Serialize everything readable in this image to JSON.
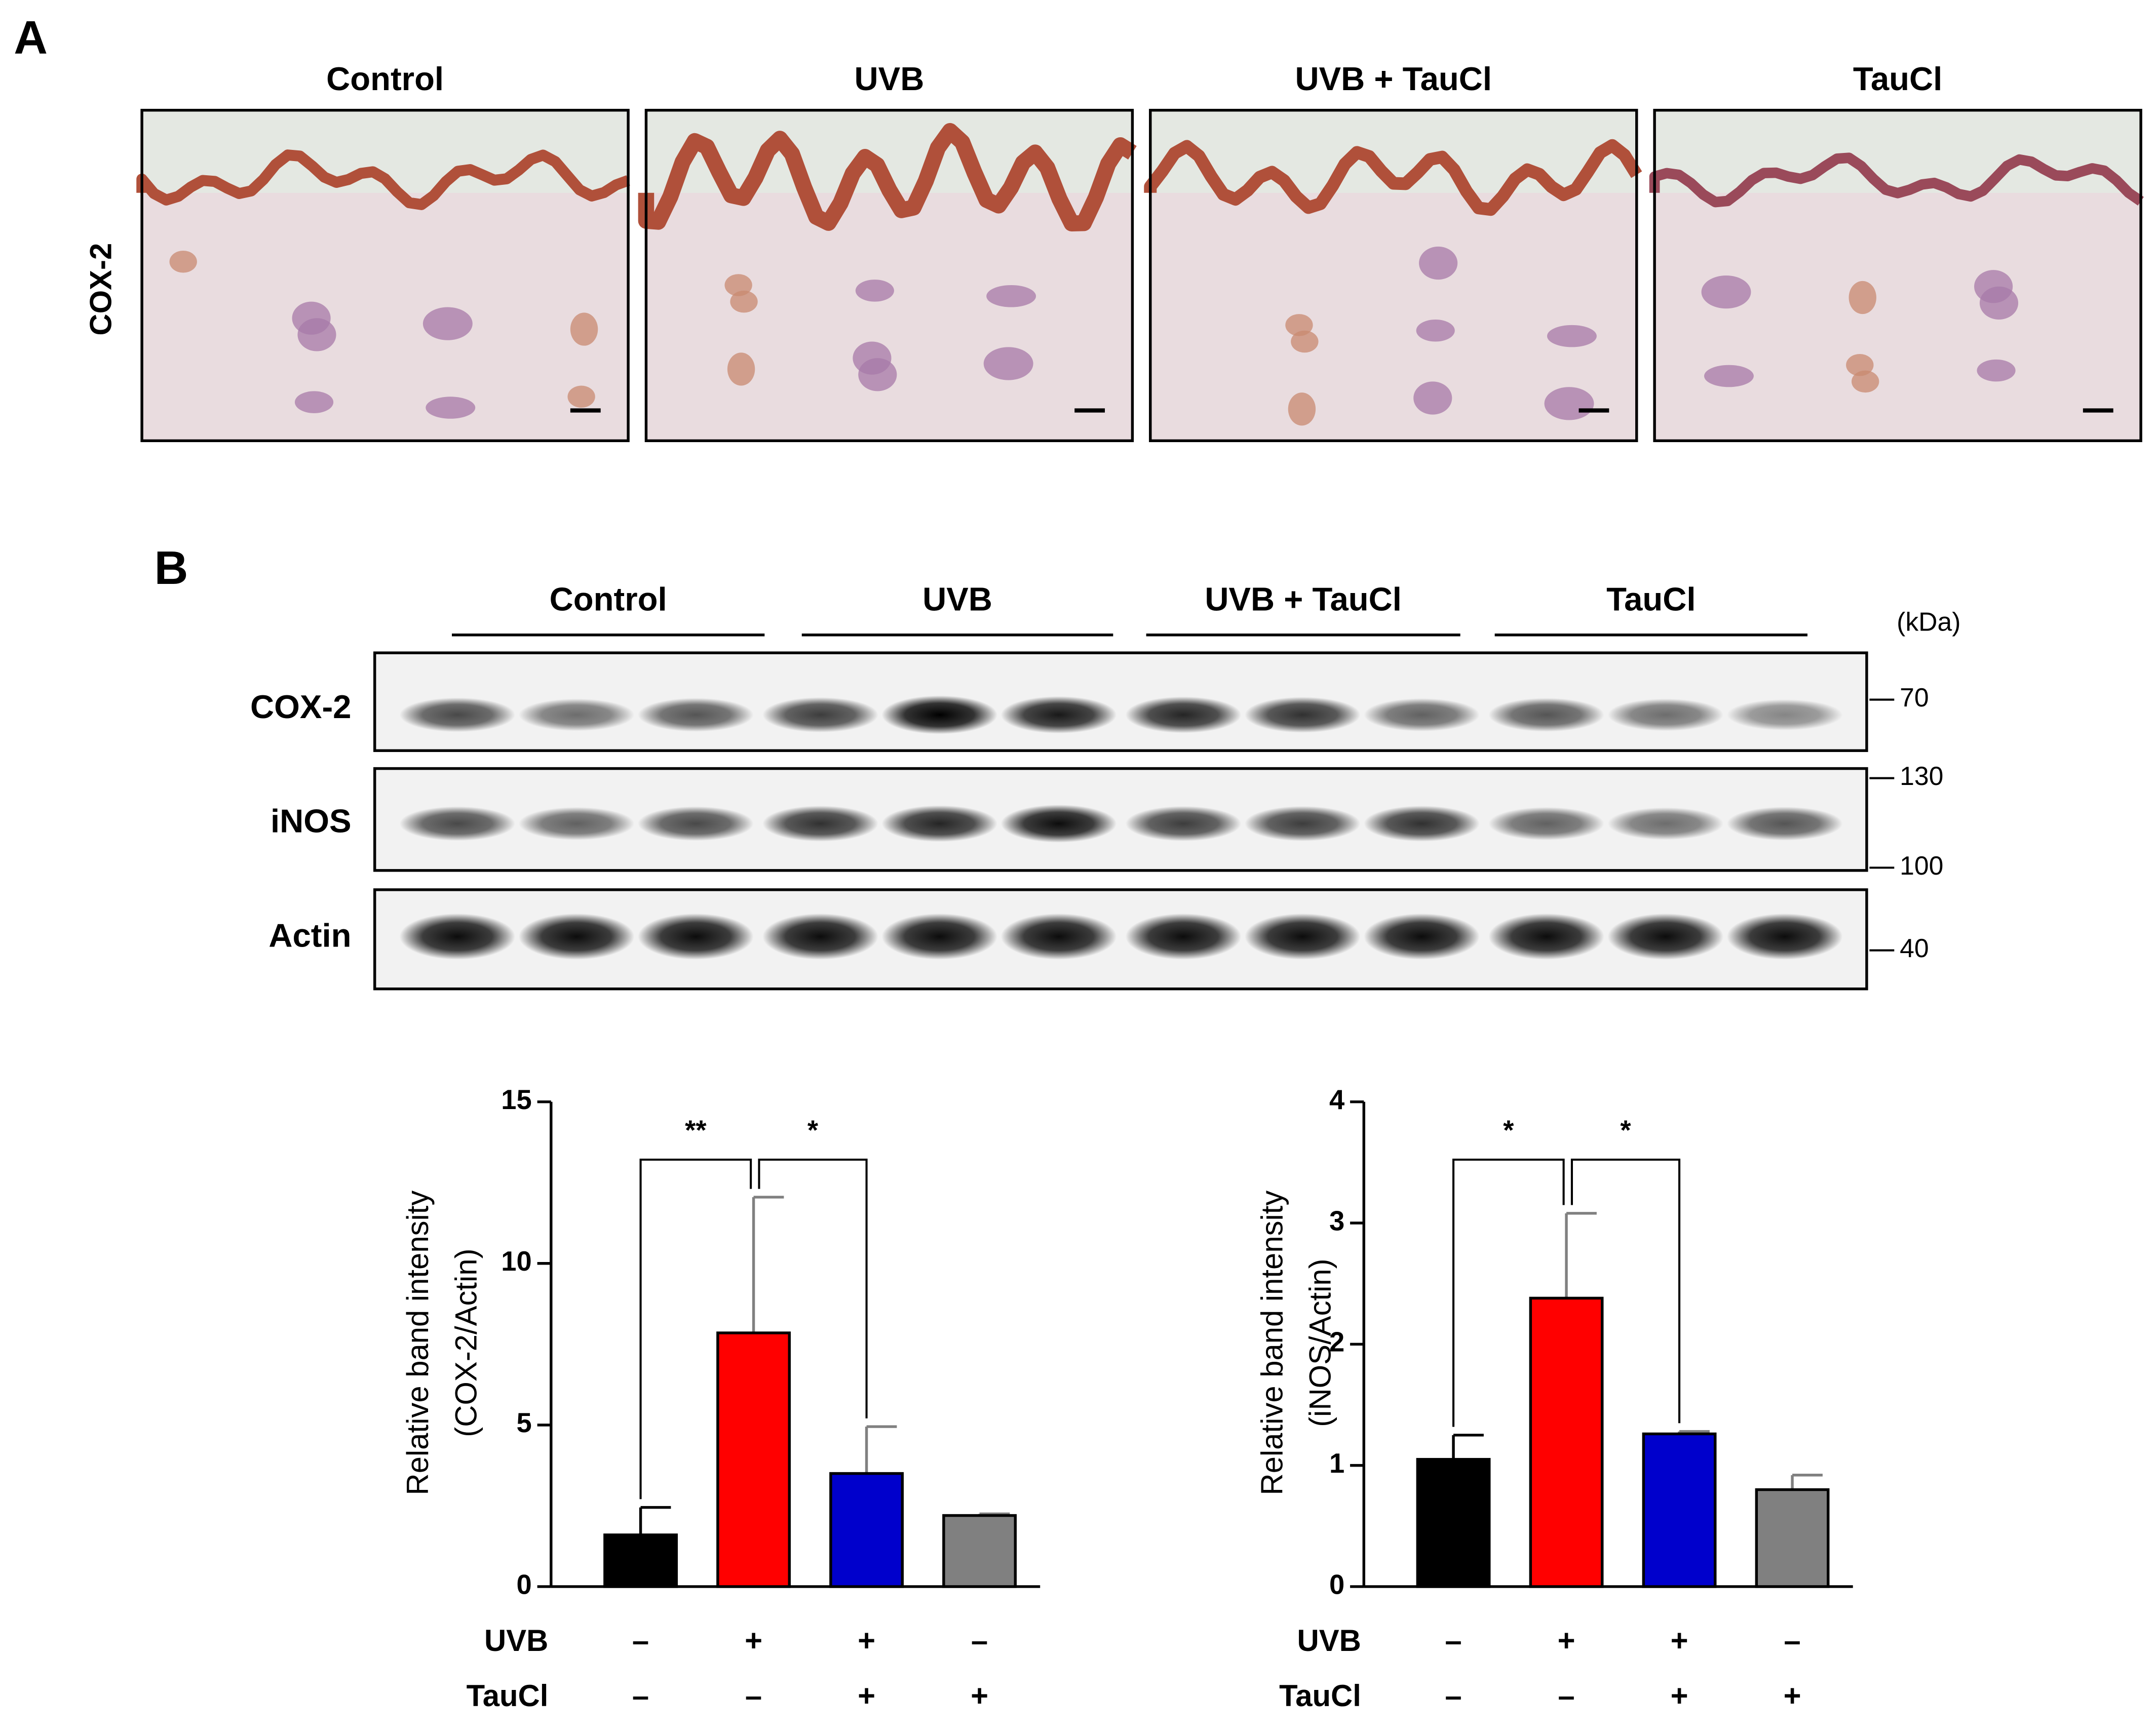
{
  "panel_a": {
    "label": "A",
    "row_label": "COX-2",
    "columns": [
      "Control",
      "UVB",
      "UVB + TauCl",
      "TauCl"
    ]
  },
  "panel_b": {
    "label": "B",
    "groups": [
      "Control",
      "UVB",
      "UVB + TauCl",
      "TauCl"
    ],
    "unit": "(kDa)",
    "rows": [
      "COX-2",
      "iNOS",
      "Actin"
    ],
    "markers": [
      70,
      130,
      100,
      40
    ]
  },
  "chart_data": [
    {
      "type": "bar",
      "ylabel": [
        "Relative band intensity",
        "(COX-2/Actin)"
      ],
      "values": [
        1.6,
        7.85,
        3.5,
        2.2
      ],
      "errors": [
        0.85,
        4.2,
        1.45,
        0.05
      ],
      "colors": [
        "#000000",
        "#ff0000",
        "#0000cc",
        "#808080"
      ],
      "ylim": [
        0,
        15
      ],
      "yticks": [
        0,
        5,
        10,
        15
      ],
      "treatments": [
        {
          "name": "UVB",
          "labels": [
            "–",
            "+",
            "+",
            "–"
          ]
        },
        {
          "name": "TauCl",
          "labels": [
            "–",
            "–",
            "+",
            "+"
          ]
        }
      ],
      "annotations": [
        "**",
        "*"
      ]
    },
    {
      "type": "bar",
      "ylabel": [
        "Relative band intensity",
        "(iNOS/Actin)"
      ],
      "values": [
        1.05,
        2.38,
        1.26,
        0.8
      ],
      "errors": [
        0.2,
        0.7,
        0.02,
        0.12
      ],
      "colors": [
        "#000000",
        "#ff0000",
        "#0000cc",
        "#808080"
      ],
      "ylim": [
        0,
        4
      ],
      "yticks": [
        0,
        1,
        2,
        3,
        4
      ],
      "treatments": [
        {
          "name": "UVB",
          "labels": [
            "–",
            "+",
            "+",
            "–"
          ]
        },
        {
          "name": "TauCl",
          "labels": [
            "–",
            "–",
            "+",
            "+"
          ]
        }
      ],
      "annotations": [
        "*",
        "*"
      ]
    }
  ]
}
